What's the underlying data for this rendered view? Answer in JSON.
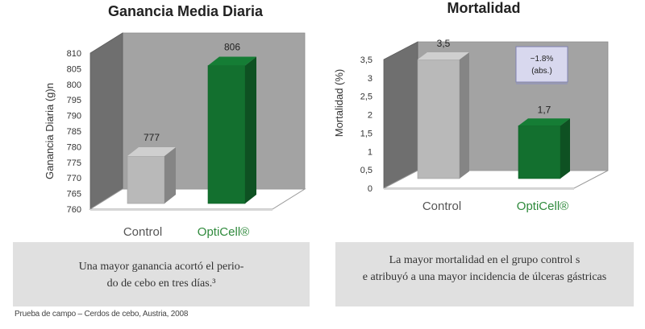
{
  "chart_data": [
    {
      "type": "bar",
      "title": "Ganancia Media Diaria",
      "ylabel": "Ganancia Diaria (g)n",
      "categories": [
        "Control",
        "OptiCell®"
      ],
      "values": [
        777,
        806
      ],
      "value_labels": [
        "777",
        "806"
      ],
      "ylim": [
        760,
        810
      ],
      "yticks": [
        "760",
        "765",
        "770",
        "775",
        "780",
        "785",
        "790",
        "795",
        "800",
        "805",
        "810"
      ],
      "bar_colors": [
        "#b9b9b9",
        "#13702f"
      ],
      "category_colors": [
        "#555555",
        "#2f8a3c"
      ],
      "grid": false,
      "style": "3d"
    },
    {
      "type": "bar",
      "title": "Mortalidad",
      "ylabel": "Mortalidad (%)",
      "categories": [
        "Control",
        "OptiCell®"
      ],
      "values": [
        3.5,
        1.7
      ],
      "value_labels": [
        "3,5",
        "1,7"
      ],
      "ylim": [
        0,
        3.5
      ],
      "yticks": [
        "0",
        "0,5",
        "1",
        "1,5",
        "2",
        "2,5",
        "3",
        "3,5"
      ],
      "bar_colors": [
        "#b9b9b9",
        "#13702f"
      ],
      "category_colors": [
        "#555555",
        "#2f8a3c"
      ],
      "annotation": [
        "−1.8%",
        "(abs.)"
      ],
      "grid": false,
      "style": "3d"
    }
  ],
  "captions": {
    "left": [
      "Una mayor ganancia acortó el perio-",
      "do de cebo en tres días.³"
    ],
    "right": [
      "La mayor mortalidad en el grupo control s",
      "e atribuyó a una mayor incidencia de úlceras gástricas"
    ]
  },
  "source": "Prueba de campo – Cerdos de cebo, Austria, 2008"
}
